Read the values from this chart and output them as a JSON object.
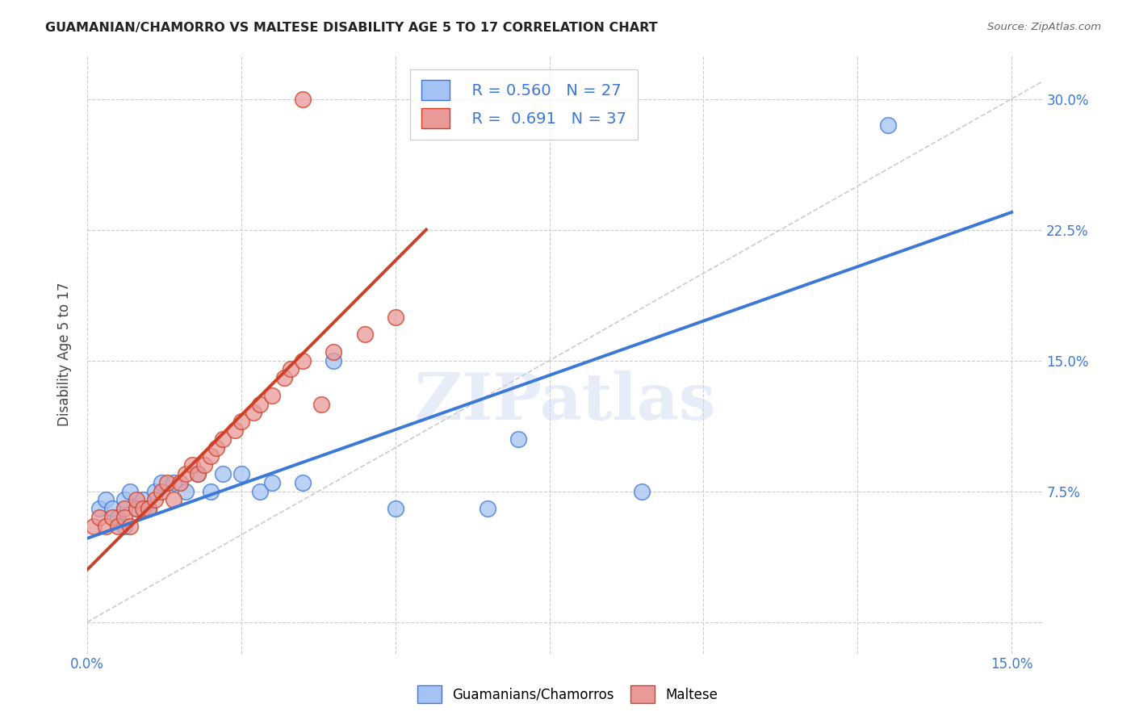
{
  "title": "GUAMANIAN/CHAMORRO VS MALTESE DISABILITY AGE 5 TO 17 CORRELATION CHART",
  "source": "Source: ZipAtlas.com",
  "ylabel": "Disability Age 5 to 17",
  "xlim": [
    0.0,
    0.155
  ],
  "ylim": [
    -0.018,
    0.325
  ],
  "xticks": [
    0.0,
    0.025,
    0.05,
    0.075,
    0.1,
    0.125,
    0.15
  ],
  "xticklabels": [
    "0.0%",
    "",
    "",
    "",
    "",
    "",
    "15.0%"
  ],
  "yticks": [
    0.0,
    0.075,
    0.15,
    0.225,
    0.3
  ],
  "yticklabels": [
    "",
    "7.5%",
    "15.0%",
    "22.5%",
    "30.0%"
  ],
  "blue_R": "0.560",
  "blue_N": "27",
  "pink_R": "0.691",
  "pink_N": "37",
  "blue_color": "#a4c2f4",
  "pink_color": "#ea9999",
  "blue_line_color": "#3c78d8",
  "pink_line_color": "#cc4125",
  "diagonal_color": "#cccccc",
  "background_color": "#ffffff",
  "grid_color": "#cccccc",
  "watermark": "ZIPatlas",
  "blue_scatter_x": [
    0.002,
    0.003,
    0.004,
    0.005,
    0.006,
    0.006,
    0.007,
    0.008,
    0.009,
    0.01,
    0.011,
    0.012,
    0.014,
    0.016,
    0.018,
    0.02,
    0.022,
    0.025,
    0.028,
    0.03,
    0.035,
    0.04,
    0.05,
    0.065,
    0.07,
    0.09,
    0.13
  ],
  "blue_scatter_y": [
    0.065,
    0.07,
    0.065,
    0.06,
    0.055,
    0.07,
    0.075,
    0.065,
    0.07,
    0.065,
    0.075,
    0.08,
    0.08,
    0.075,
    0.085,
    0.075,
    0.085,
    0.085,
    0.075,
    0.08,
    0.08,
    0.15,
    0.065,
    0.065,
    0.105,
    0.075,
    0.285
  ],
  "pink_scatter_x": [
    0.001,
    0.002,
    0.003,
    0.004,
    0.005,
    0.006,
    0.006,
    0.007,
    0.008,
    0.008,
    0.009,
    0.01,
    0.011,
    0.012,
    0.013,
    0.014,
    0.015,
    0.016,
    0.017,
    0.018,
    0.019,
    0.02,
    0.021,
    0.022,
    0.024,
    0.025,
    0.027,
    0.028,
    0.03,
    0.032,
    0.033,
    0.035,
    0.038,
    0.04,
    0.045,
    0.05,
    0.035
  ],
  "pink_scatter_y": [
    0.055,
    0.06,
    0.055,
    0.06,
    0.055,
    0.065,
    0.06,
    0.055,
    0.065,
    0.07,
    0.065,
    0.065,
    0.07,
    0.075,
    0.08,
    0.07,
    0.08,
    0.085,
    0.09,
    0.085,
    0.09,
    0.095,
    0.1,
    0.105,
    0.11,
    0.115,
    0.12,
    0.125,
    0.13,
    0.14,
    0.145,
    0.15,
    0.125,
    0.155,
    0.165,
    0.175,
    0.3
  ],
  "blue_line_x": [
    0.0,
    0.15
  ],
  "blue_line_y": [
    0.048,
    0.235
  ],
  "pink_line_x": [
    0.0,
    0.055
  ],
  "pink_line_y": [
    0.03,
    0.225
  ]
}
